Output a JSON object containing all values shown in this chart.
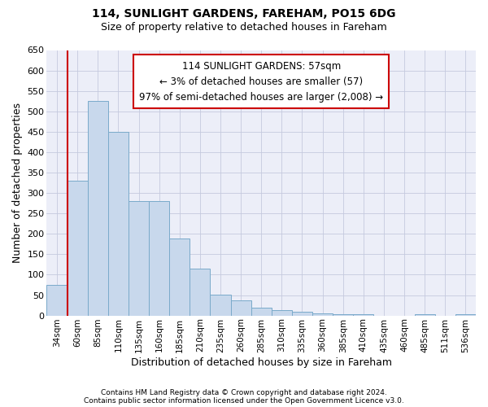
{
  "title": "114, SUNLIGHT GARDENS, FAREHAM, PO15 6DG",
  "subtitle": "Size of property relative to detached houses in Fareham",
  "xlabel": "Distribution of detached houses by size in Fareham",
  "ylabel": "Number of detached properties",
  "footnote1": "Contains HM Land Registry data © Crown copyright and database right 2024.",
  "footnote2": "Contains public sector information licensed under the Open Government Licence v3.0.",
  "categories": [
    "34sqm",
    "60sqm",
    "85sqm",
    "110sqm",
    "135sqm",
    "160sqm",
    "185sqm",
    "210sqm",
    "235sqm",
    "260sqm",
    "285sqm",
    "310sqm",
    "335sqm",
    "360sqm",
    "385sqm",
    "410sqm",
    "435sqm",
    "460sqm",
    "485sqm",
    "511sqm",
    "536sqm"
  ],
  "values": [
    75,
    330,
    525,
    450,
    280,
    280,
    188,
    115,
    52,
    37,
    19,
    13,
    9,
    6,
    4,
    3,
    0,
    0,
    4,
    0,
    4
  ],
  "bar_color": "#c8d8ec",
  "bar_edge_color": "#7aaaca",
  "grid_color": "#c5cade",
  "background_color": "#eceef8",
  "annotation_line1": "114 SUNLIGHT GARDENS: 57sqm",
  "annotation_line2": "← 3% of detached houses are smaller (57)",
  "annotation_line3": "97% of semi-detached houses are larger (2,008) →",
  "annotation_bg": "#ffffff",
  "annotation_border": "#cc0000",
  "vline_color": "#cc0000",
  "vline_x": 0.5,
  "ylim": [
    0,
    650
  ],
  "yticks": [
    0,
    50,
    100,
    150,
    200,
    250,
    300,
    350,
    400,
    450,
    500,
    550,
    600,
    650
  ]
}
